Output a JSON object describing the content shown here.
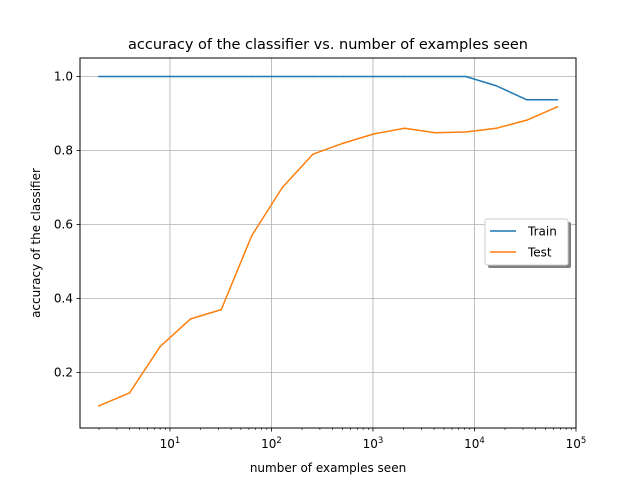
{
  "chart_data": {
    "type": "line",
    "title": "accuracy of the classifier vs. number of examples seen",
    "xlabel": "number of examples seen",
    "ylabel": "accuracy of the classifier",
    "x_scale": "log",
    "xlim": [
      1.3,
      100000
    ],
    "ylim": [
      0.05,
      1.05
    ],
    "grid": true,
    "legend_position": "center-right",
    "x_ticks": [
      {
        "value": 10,
        "base": "10",
        "exp": "1"
      },
      {
        "value": 100,
        "base": "10",
        "exp": "2"
      },
      {
        "value": 1000,
        "base": "10",
        "exp": "3"
      },
      {
        "value": 10000,
        "base": "10",
        "exp": "4"
      },
      {
        "value": 100000,
        "base": "10",
        "exp": "5"
      }
    ],
    "y_ticks": [
      "0.2",
      "0.4",
      "0.6",
      "0.8",
      "1.0"
    ],
    "x": [
      2,
      4,
      8,
      16,
      32,
      64,
      128,
      256,
      512,
      1024,
      2048,
      4096,
      8192,
      16384,
      32768,
      65536
    ],
    "series": [
      {
        "name": "Train",
        "color": "#1f77b4",
        "values": [
          1.0,
          1.0,
          1.0,
          1.0,
          1.0,
          1.0,
          1.0,
          1.0,
          1.0,
          1.0,
          1.0,
          1.0,
          1.0,
          0.975,
          0.937,
          0.937
        ]
      },
      {
        "name": "Test",
        "color": "#ff7f0e",
        "values": [
          0.11,
          0.145,
          0.27,
          0.345,
          0.37,
          0.57,
          0.7,
          0.79,
          0.82,
          0.845,
          0.86,
          0.848,
          0.85,
          0.86,
          0.882,
          0.918
        ]
      }
    ]
  }
}
